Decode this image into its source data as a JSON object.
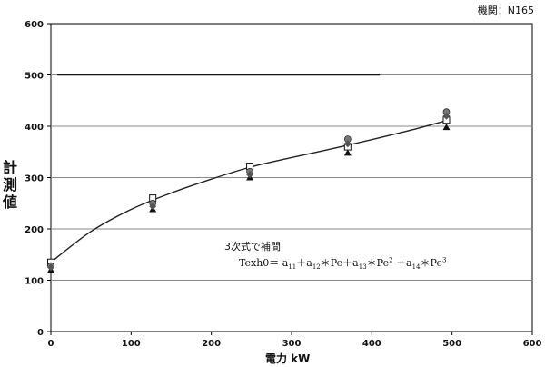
{
  "header": {
    "engine_label": "機関：N165"
  },
  "chart_data": {
    "type": "scatter",
    "xlabel": "電力 kW",
    "ylabel": "計測値",
    "xlim": [
      0,
      600
    ],
    "ylim": [
      0,
      600
    ],
    "xticks": [
      "0",
      "100",
      "200",
      "300",
      "400",
      "500",
      "600"
    ],
    "yticks": [
      "0",
      "100",
      "200",
      "300",
      "400",
      "500",
      "600"
    ],
    "grid": "horizontal",
    "annotation_title": "3次式で補間",
    "formula": {
      "lhs": "Texh0＝",
      "terms": [
        {
          "coef": "a",
          "sub": "11",
          "pow": "",
          "op_after": "＋"
        },
        {
          "coef": "a",
          "sub": "12",
          "mul": "＊Pe",
          "pow": "",
          "op_after": "＋"
        },
        {
          "coef": "a",
          "sub": "13",
          "mul": "＊Pe",
          "pow": "2",
          "op_after": " ＋"
        },
        {
          "coef": "a",
          "sub": "14",
          "mul": "＊Pe",
          "pow": "3",
          "op_after": ""
        }
      ]
    },
    "reference_line": {
      "y": 500,
      "x_start": 8,
      "x_end": 410
    },
    "fit_curve": {
      "x": [
        0,
        50,
        100,
        150,
        200,
        250,
        300,
        350,
        400,
        450,
        495
      ],
      "y": [
        135,
        195,
        238,
        270,
        297,
        321,
        339,
        356,
        374,
        393,
        412
      ]
    },
    "series": [
      {
        "marker": "square-open",
        "x": [
          0,
          127,
          248,
          370,
          493
        ],
        "y": [
          135,
          260,
          322,
          360,
          412
        ]
      },
      {
        "marker": "circle",
        "x": [
          0,
          127,
          248,
          370,
          493
        ],
        "y": [
          128,
          250,
          312,
          375,
          428
        ]
      },
      {
        "marker": "triangle",
        "x": [
          0,
          127,
          248,
          370,
          493
        ],
        "y": [
          120,
          238,
          300,
          348,
          398
        ]
      },
      {
        "marker": "diamond",
        "x": [
          0,
          127,
          248,
          370,
          493
        ],
        "y": [
          125,
          244,
          306,
          366,
          420
        ]
      }
    ]
  }
}
